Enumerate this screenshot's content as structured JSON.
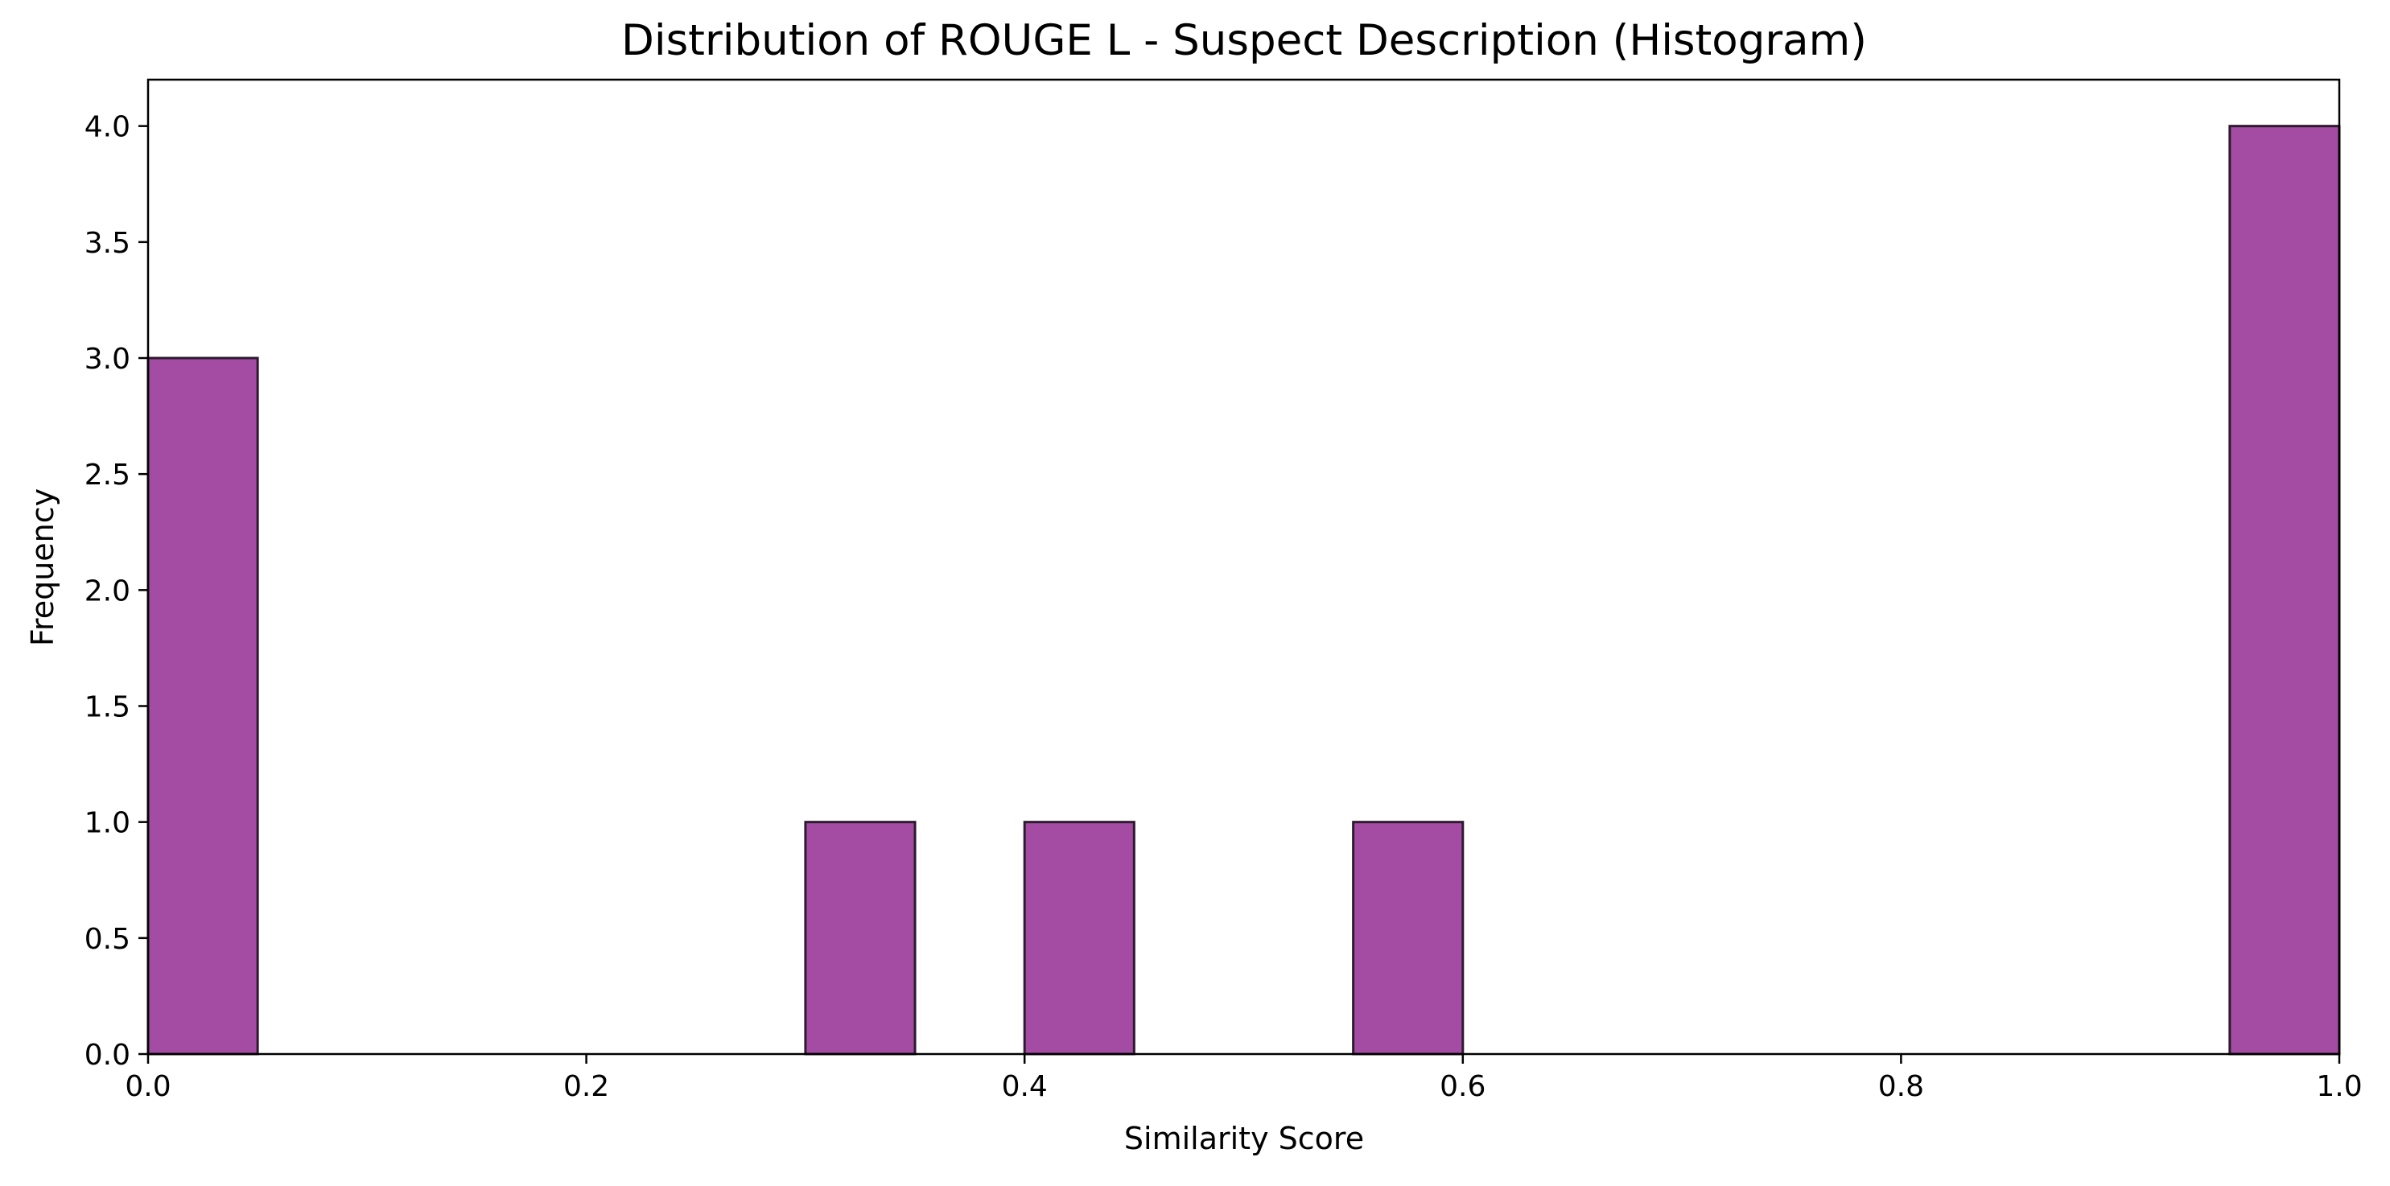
{
  "chart_data": {
    "type": "bar",
    "title": "Distribution of ROUGE L - Suspect Description (Histogram)",
    "xlabel": "Similarity Score",
    "ylabel": "Frequency",
    "xlim": [
      0.0,
      1.0
    ],
    "ylim": [
      0.0,
      4.2
    ],
    "bin_width": 0.05,
    "bins": [
      {
        "x0": 0.0,
        "x1": 0.05,
        "count": 3
      },
      {
        "x0": 0.3,
        "x1": 0.35,
        "count": 1
      },
      {
        "x0": 0.4,
        "x1": 0.45,
        "count": 1
      },
      {
        "x0": 0.55,
        "x1": 0.6,
        "count": 1
      },
      {
        "x0": 0.95,
        "x1": 1.0,
        "count": 4
      }
    ],
    "x_ticks": [
      {
        "value": 0.0,
        "label": "0.0"
      },
      {
        "value": 0.2,
        "label": "0.2"
      },
      {
        "value": 0.4,
        "label": "0.4"
      },
      {
        "value": 0.6,
        "label": "0.6"
      },
      {
        "value": 0.8,
        "label": "0.8"
      },
      {
        "value": 1.0,
        "label": "1.0"
      }
    ],
    "y_ticks": [
      {
        "value": 0.0,
        "label": "0.0"
      },
      {
        "value": 0.5,
        "label": "0.5"
      },
      {
        "value": 1.0,
        "label": "1.0"
      },
      {
        "value": 1.5,
        "label": "1.5"
      },
      {
        "value": 2.0,
        "label": "2.0"
      },
      {
        "value": 2.5,
        "label": "2.5"
      },
      {
        "value": 3.0,
        "label": "3.0"
      },
      {
        "value": 3.5,
        "label": "3.5"
      },
      {
        "value": 4.0,
        "label": "4.0"
      }
    ],
    "grid": false,
    "legend": "none",
    "colors": {
      "bar_fill": "#a44ca4",
      "bar_edge": "#2e1a2e",
      "axis": "#000000"
    }
  }
}
